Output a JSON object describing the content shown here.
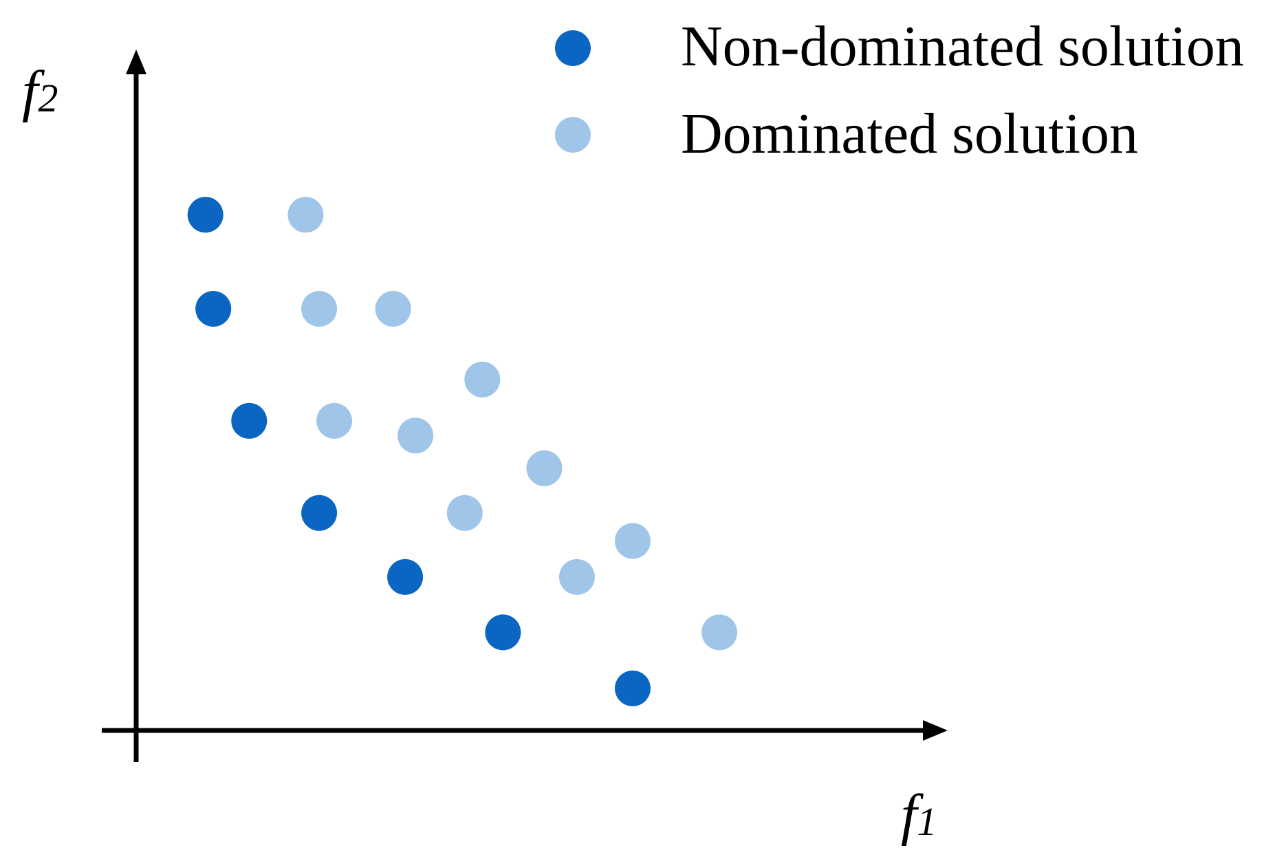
{
  "chart_data": {
    "type": "scatter",
    "xlabel": "f1",
    "ylabel": "f2",
    "xlabel_main": "f",
    "xlabel_sub": "1",
    "ylabel_main": "f",
    "ylabel_sub": "2",
    "grid": false,
    "legend_position": "top-right",
    "xlim": [
      0,
      100
    ],
    "ylim": [
      0,
      100
    ],
    "series": [
      {
        "name": "Non-dominated solution",
        "color": "#0a66c2",
        "points": [
          {
            "x": 8.7,
            "y": 77.3
          },
          {
            "x": 9.7,
            "y": 63.2
          },
          {
            "x": 14.2,
            "y": 46.4
          },
          {
            "x": 23.0,
            "y": 32.6
          },
          {
            "x": 33.8,
            "y": 23.0
          },
          {
            "x": 46.1,
            "y": 14.7
          },
          {
            "x": 62.4,
            "y": 6.3
          }
        ]
      },
      {
        "name": "Dominated solution",
        "color": "#9fc5e8",
        "points": [
          {
            "x": 21.3,
            "y": 77.3
          },
          {
            "x": 23.0,
            "y": 63.2
          },
          {
            "x": 32.3,
            "y": 63.2
          },
          {
            "x": 43.5,
            "y": 52.6
          },
          {
            "x": 24.9,
            "y": 46.4
          },
          {
            "x": 35.1,
            "y": 44.2
          },
          {
            "x": 51.3,
            "y": 39.3
          },
          {
            "x": 41.3,
            "y": 32.6
          },
          {
            "x": 62.4,
            "y": 28.4
          },
          {
            "x": 55.4,
            "y": 23.0
          },
          {
            "x": 73.3,
            "y": 14.7
          }
        ]
      }
    ]
  }
}
